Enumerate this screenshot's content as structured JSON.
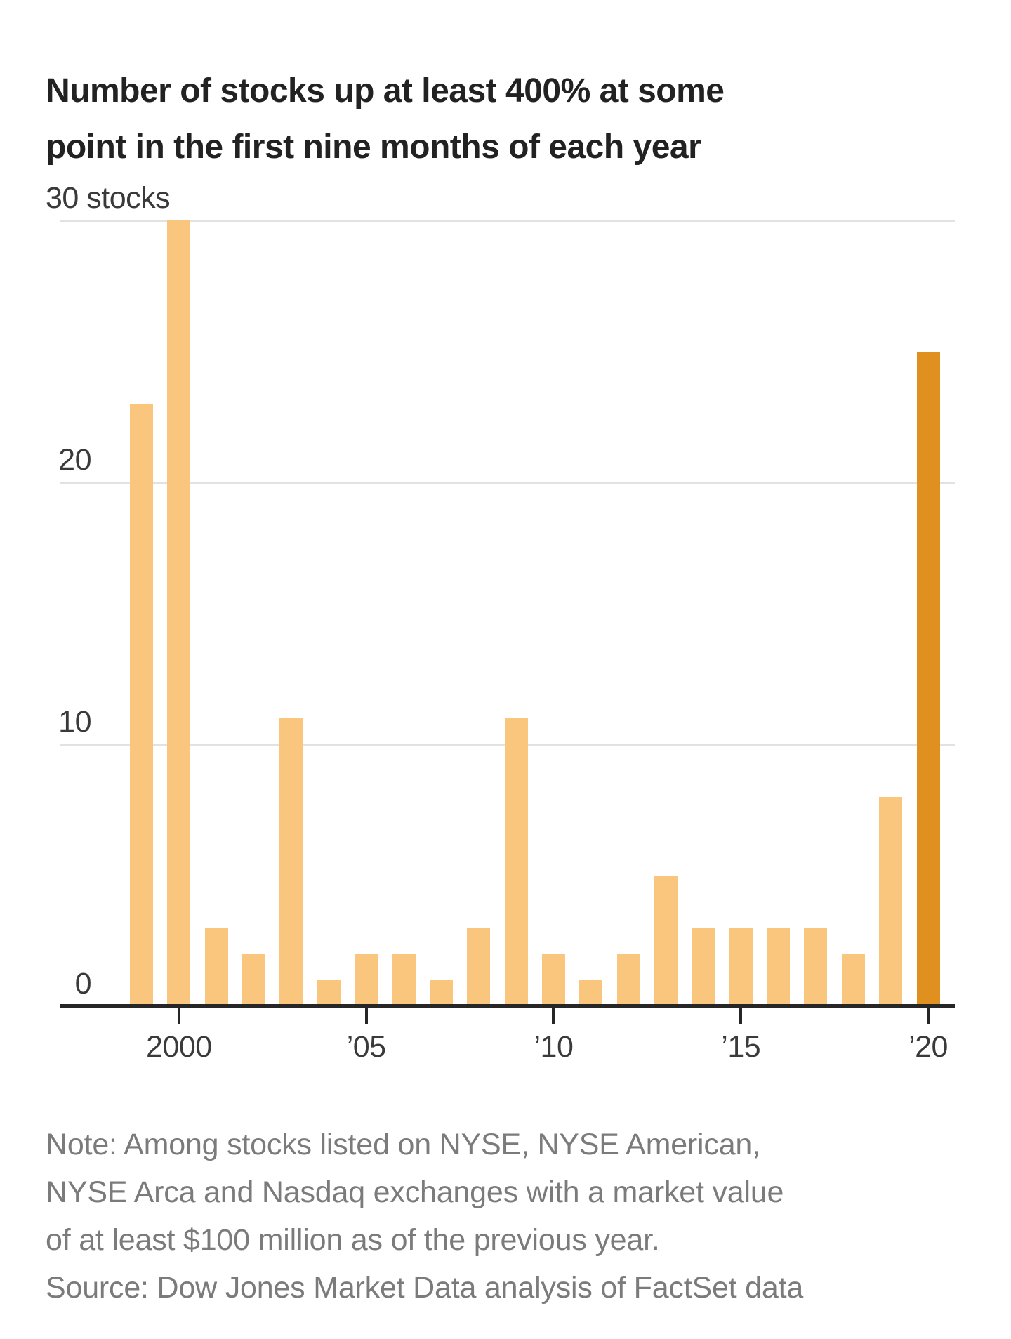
{
  "title": {
    "line1": "Number of stocks up at least 400% at some",
    "line2": "point in the first nine months of each year"
  },
  "chart_data": {
    "type": "bar",
    "title": "Number of stocks up at least 400% at some point in the first nine months of each year",
    "x": [
      1999,
      2000,
      2001,
      2002,
      2003,
      2004,
      2005,
      2006,
      2007,
      2008,
      2009,
      2010,
      2011,
      2012,
      2013,
      2014,
      2015,
      2016,
      2017,
      2018,
      2019,
      2020
    ],
    "values": [
      23,
      30,
      3,
      2,
      11,
      1,
      2,
      2,
      1,
      3,
      11,
      2,
      1,
      2,
      5,
      3,
      3,
      3,
      3,
      2,
      8,
      25
    ],
    "xlabel": "",
    "ylabel": "stocks",
    "ylim": [
      0,
      30
    ],
    "grid": true,
    "legend_position": "none",
    "bar_color": "#FAC57C",
    "highlight_x": 2020,
    "highlight_bar_color": "#E0901E",
    "y_axis_labels": [
      {
        "value": 30,
        "label": "30 stocks"
      },
      {
        "value": 20,
        "label": "20"
      },
      {
        "value": 10,
        "label": "10"
      },
      {
        "value": 0,
        "label": "0"
      }
    ],
    "y_gridlines": [
      10,
      20,
      30
    ],
    "x_ticks": [
      {
        "year": 2000,
        "label": "2000"
      },
      {
        "year": 2005,
        "label": "’05"
      },
      {
        "year": 2010,
        "label": "’10"
      },
      {
        "year": 2015,
        "label": "’15"
      },
      {
        "year": 2020,
        "label": "’20"
      }
    ]
  },
  "note": {
    "line1": "Note: Among stocks listed on NYSE, NYSE American,",
    "line2": "NYSE Arca and Nasdaq exchanges with a market value",
    "line3": "of at least $100 million as of the previous year."
  },
  "source": {
    "text": "Source: Dow Jones Market Data analysis of FactSet data"
  }
}
